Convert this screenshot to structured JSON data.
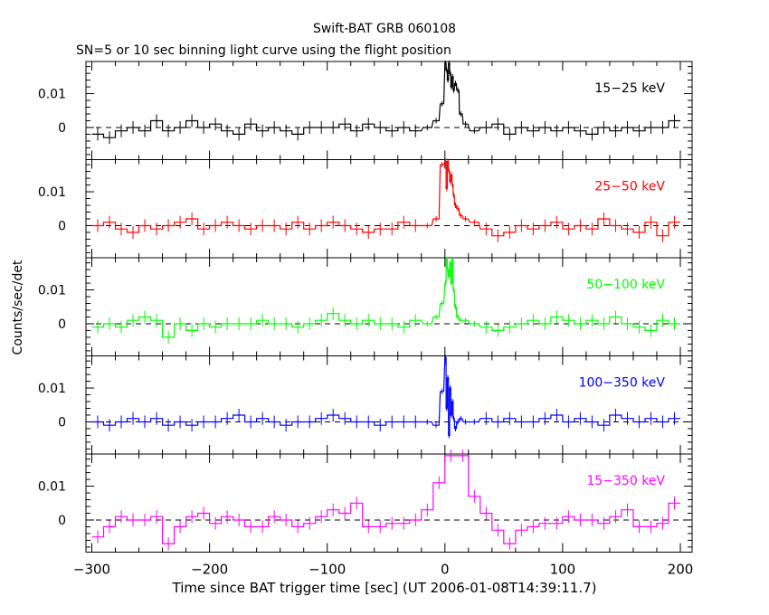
{
  "chart_data": {
    "type": "line",
    "title": "Swift-BAT GRB 060108",
    "subtitle": "SN=5 or 10 sec binning light curve using the flight position",
    "xlabel": "Time since BAT trigger time [sec] (UT 2006-01-08T14:39:11.7)",
    "ylabel": "Counts/sec/det",
    "xlim": [
      -305,
      210
    ],
    "ylim": [
      -0.0095,
      0.0195
    ],
    "x_ticks": [
      -300,
      -200,
      -100,
      0,
      100,
      200
    ],
    "x_tick_labels": [
      "−300",
      "−200",
      "−100",
      "0",
      "100",
      "200"
    ],
    "y_ticks": [
      0,
      0.01
    ],
    "y_tick_labels": [
      "0",
      "0.01"
    ],
    "panels": [
      {
        "name": "15-25 keV",
        "label": "15−25 keV",
        "color": "#000000",
        "times": [
          -295,
          -285,
          -275,
          -265,
          -255,
          -245,
          -235,
          -225,
          -215,
          -205,
          -195,
          -185,
          -175,
          -165,
          -155,
          -145,
          -135,
          -125,
          -115,
          -105,
          -95,
          -85,
          -75,
          -65,
          -55,
          -45,
          -35,
          -25,
          -15,
          -7.5,
          -2.5,
          0.5,
          1.5,
          2.5,
          3.5,
          4.5,
          5.5,
          6.5,
          7.5,
          9,
          11,
          13.5,
          17.5,
          25,
          35,
          45,
          55,
          65,
          75,
          85,
          95,
          105,
          115,
          125,
          135,
          145,
          155,
          165,
          175,
          185,
          195
        ],
        "values": [
          -0.002,
          -0.003,
          -0.001,
          0.0,
          -0.001,
          0.002,
          -0.001,
          0.0,
          0.002,
          0.0,
          0.001,
          -0.001,
          -0.002,
          0.001,
          -0.001,
          0.0,
          -0.001,
          -0.002,
          0.0,
          0.0,
          0.0,
          0.001,
          -0.001,
          0.001,
          0.0,
          -0.001,
          0.0,
          -0.001,
          0.0,
          0.002,
          0.007,
          0.019,
          0.017,
          0.014,
          0.019,
          0.016,
          0.012,
          0.015,
          0.011,
          0.013,
          0.011,
          0.004,
          0.001,
          -0.001,
          0.0,
          0.001,
          -0.002,
          0.0,
          -0.001,
          0.0,
          -0.001,
          0.0,
          -0.001,
          -0.002,
          0.0,
          -0.001,
          0.0,
          -0.001,
          0.0,
          0.0,
          0.002
        ]
      },
      {
        "name": "25-50 keV",
        "label": "25−50 keV",
        "color": "#ff0000",
        "times": [
          -295,
          -285,
          -275,
          -265,
          -255,
          -245,
          -235,
          -225,
          -215,
          -205,
          -195,
          -185,
          -175,
          -165,
          -155,
          -145,
          -135,
          -125,
          -115,
          -105,
          -95,
          -85,
          -75,
          -65,
          -55,
          -45,
          -35,
          -25,
          -15,
          -7.5,
          -2.5,
          0.5,
          1.5,
          2.5,
          3.5,
          4.5,
          5.5,
          6.5,
          7.5,
          9,
          11,
          13.5,
          17.5,
          25,
          35,
          45,
          55,
          65,
          75,
          85,
          95,
          105,
          115,
          125,
          135,
          145,
          155,
          165,
          175,
          185,
          195
        ],
        "values": [
          0.0,
          0.001,
          -0.001,
          -0.002,
          0.0,
          -0.001,
          0.0,
          0.001,
          0.002,
          -0.001,
          0.0,
          0.001,
          0.0,
          -0.001,
          0.0,
          0.0,
          -0.001,
          0.001,
          -0.001,
          0.0,
          0.001,
          0.0,
          -0.001,
          -0.002,
          -0.001,
          -0.001,
          0.001,
          0.0,
          0.0,
          0.002,
          0.018,
          0.019,
          0.011,
          0.019,
          0.016,
          0.013,
          0.015,
          0.012,
          0.009,
          0.006,
          0.005,
          0.003,
          0.002,
          0.001,
          -0.001,
          -0.003,
          -0.002,
          0.0,
          -0.001,
          0.0,
          0.001,
          -0.001,
          0.0,
          -0.001,
          0.002,
          0.0,
          -0.001,
          -0.002,
          0.001,
          -0.003,
          0.001
        ]
      },
      {
        "name": "50-100 keV",
        "label": "50−100 keV",
        "color": "#00ff00",
        "times": [
          -295,
          -285,
          -275,
          -265,
          -255,
          -245,
          -235,
          -225,
          -215,
          -205,
          -195,
          -185,
          -175,
          -165,
          -155,
          -145,
          -135,
          -125,
          -115,
          -105,
          -95,
          -85,
          -75,
          -65,
          -55,
          -45,
          -35,
          -25,
          -15,
          -7.5,
          -2.5,
          0.5,
          1.5,
          2.5,
          3.5,
          4.5,
          5.5,
          6.5,
          7.5,
          9,
          11,
          13.5,
          17.5,
          25,
          35,
          45,
          55,
          65,
          75,
          85,
          95,
          105,
          115,
          125,
          135,
          145,
          155,
          165,
          175,
          185,
          195
        ],
        "values": [
          -0.001,
          0.0,
          -0.001,
          0.001,
          0.002,
          0.001,
          -0.004,
          0.0,
          -0.002,
          0.0,
          -0.001,
          0.0,
          0.0,
          0.0,
          0.001,
          0.0,
          0.0,
          -0.001,
          0.0,
          0.001,
          0.003,
          0.001,
          0.0,
          0.001,
          0.0,
          0.0,
          -0.001,
          0.001,
          0.0,
          0.002,
          0.006,
          0.012,
          0.019,
          0.016,
          0.014,
          0.018,
          0.012,
          0.019,
          0.01,
          0.005,
          0.002,
          0.001,
          0.001,
          0.0,
          -0.001,
          -0.002,
          -0.001,
          0.0,
          0.001,
          0.0,
          0.002,
          0.001,
          0.0,
          0.001,
          0.0,
          0.002,
          0.0,
          -0.001,
          -0.002,
          0.001,
          0.0
        ]
      },
      {
        "name": "100-350 keV",
        "label": "100−350 keV",
        "color": "#0000ff",
        "times": [
          -295,
          -285,
          -275,
          -265,
          -255,
          -245,
          -235,
          -225,
          -215,
          -205,
          -195,
          -185,
          -175,
          -165,
          -155,
          -145,
          -135,
          -125,
          -115,
          -105,
          -95,
          -85,
          -75,
          -65,
          -55,
          -45,
          -35,
          -25,
          -15,
          -7.5,
          -2.5,
          0.5,
          1.5,
          2.5,
          3.5,
          4.5,
          5.5,
          6.5,
          7.5,
          9,
          11,
          13.5,
          17.5,
          25,
          35,
          45,
          55,
          65,
          75,
          85,
          95,
          105,
          115,
          125,
          135,
          145,
          155,
          165,
          175,
          185,
          195
        ],
        "values": [
          0.0,
          -0.001,
          0.0,
          0.001,
          0.0,
          0.001,
          -0.001,
          0.0,
          -0.001,
          0.0,
          0.0,
          0.001,
          0.002,
          0.0,
          0.001,
          0.0,
          -0.001,
          0.0,
          0.0,
          0.001,
          0.002,
          0.001,
          0.0,
          0.0,
          -0.001,
          0.0,
          0.0,
          0.0,
          0.0,
          -0.001,
          0.009,
          0.019,
          0.004,
          0.013,
          -0.004,
          0.01,
          0.002,
          0.006,
          0.001,
          -0.002,
          0.0,
          0.001,
          0.0,
          0.0,
          0.001,
          0.0,
          0.001,
          0.0,
          0.0,
          0.001,
          0.002,
          0.0,
          0.001,
          0.0,
          -0.001,
          0.002,
          0.001,
          0.0,
          0.001,
          0.0,
          0.001
        ]
      },
      {
        "name": "15-350 keV",
        "label": "15−350 keV",
        "color": "#ff00ff",
        "times": [
          -295,
          -285,
          -275,
          -265,
          -255,
          -245,
          -235,
          -225,
          -215,
          -205,
          -195,
          -185,
          -175,
          -165,
          -155,
          -145,
          -135,
          -125,
          -115,
          -105,
          -95,
          -85,
          -75,
          -65,
          -55,
          -45,
          -35,
          -25,
          -15,
          -5,
          5,
          15,
          25,
          35,
          45,
          55,
          65,
          75,
          85,
          95,
          105,
          115,
          125,
          135,
          145,
          155,
          165,
          175,
          185,
          195
        ],
        "values": [
          -0.005,
          -0.002,
          0.001,
          0.0,
          0.0,
          0.001,
          -0.007,
          -0.002,
          0.001,
          0.002,
          -0.001,
          0.001,
          0.0,
          -0.002,
          -0.002,
          0.001,
          0.0,
          -0.002,
          -0.001,
          0.001,
          0.003,
          0.002,
          0.005,
          -0.002,
          -0.002,
          -0.001,
          -0.001,
          0.0,
          0.003,
          0.011,
          0.019,
          0.019,
          0.007,
          0.002,
          -0.003,
          -0.007,
          -0.003,
          -0.002,
          -0.001,
          -0.001,
          0.001,
          0.0,
          0.0,
          -0.001,
          0.001,
          0.003,
          -0.002,
          -0.002,
          -0.001,
          0.005
        ]
      }
    ]
  }
}
